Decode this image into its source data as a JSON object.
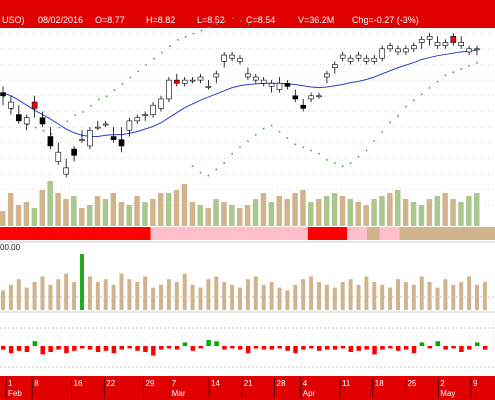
{
  "header": {
    "symbol": "USO)",
    "date": "08/02/2016",
    "open": "O=8.77",
    "high": "H=8.82",
    "low": "L=8.52",
    "close": "C=8.54",
    "volume": "V=36.2M",
    "change": "Chg=-0.27 (-3%)"
  },
  "colors": {
    "header_bg": "#e00000",
    "up_fill": "#ffffff",
    "down_fill": "#000000",
    "hollow_red_fill": "#ff0000",
    "ma_line": "#2a3fc8",
    "green_dots": "#3caa3c",
    "volume_green": "#a9c78f",
    "volume_tan": "#d2b48c",
    "band_red": "#ff0000",
    "band_pink": "#ffc0cb",
    "band_tan": "#d2b48c",
    "osc_red": "#ff0000",
    "osc_green": "#00aa00",
    "indicator_highlight": "#22aa22"
  },
  "middle_panel": {
    "label": "00.00"
  },
  "x_axis": {
    "ticks": [
      {
        "label": "1",
        "sub": "Feb"
      },
      {
        "label": "8",
        "sub": ""
      },
      {
        "label": "16",
        "sub": ""
      },
      {
        "label": "22",
        "sub": ""
      },
      {
        "label": "29",
        "sub": ""
      },
      {
        "label": "7",
        "sub": "Mar"
      },
      {
        "label": "14",
        "sub": ""
      },
      {
        "label": "21",
        "sub": ""
      },
      {
        "label": "28",
        "sub": ""
      },
      {
        "label": "4",
        "sub": "Apr"
      },
      {
        "label": "11",
        "sub": ""
      },
      {
        "label": "18",
        "sub": ""
      },
      {
        "label": "25",
        "sub": ""
      },
      {
        "label": "2",
        "sub": "May"
      },
      {
        "label": "9",
        "sub": ""
      }
    ]
  },
  "chart_data": {
    "type": "candlestick",
    "ylim": [
      7.3,
      10.3
    ],
    "candles": [
      {
        "o": 9.3,
        "h": 9.4,
        "l": 9.1,
        "c": 9.25,
        "col": "down"
      },
      {
        "o": 9.15,
        "h": 9.25,
        "l": 8.95,
        "c": 9.05,
        "col": "up"
      },
      {
        "o": 8.95,
        "h": 9.1,
        "l": 8.8,
        "c": 8.85,
        "col": "down"
      },
      {
        "o": 8.8,
        "h": 8.95,
        "l": 8.7,
        "c": 8.9,
        "col": "up"
      },
      {
        "o": 9.05,
        "h": 9.25,
        "l": 8.9,
        "c": 9.15,
        "col": "red"
      },
      {
        "o": 8.9,
        "h": 9.0,
        "l": 8.75,
        "c": 8.8,
        "col": "down"
      },
      {
        "o": 8.6,
        "h": 8.75,
        "l": 8.4,
        "c": 8.45,
        "col": "down"
      },
      {
        "o": 8.35,
        "h": 8.5,
        "l": 8.15,
        "c": 8.2,
        "col": "up"
      },
      {
        "o": 8.1,
        "h": 8.25,
        "l": 7.95,
        "c": 8.0,
        "col": "up"
      },
      {
        "o": 8.3,
        "h": 8.45,
        "l": 8.2,
        "c": 8.4,
        "col": "down"
      },
      {
        "o": 8.55,
        "h": 8.7,
        "l": 8.5,
        "c": 8.55,
        "col": "up"
      },
      {
        "o": 8.45,
        "h": 8.75,
        "l": 8.4,
        "c": 8.7,
        "col": "up"
      },
      {
        "o": 8.75,
        "h": 8.85,
        "l": 8.7,
        "c": 8.75,
        "col": "up"
      },
      {
        "o": 8.8,
        "h": 8.85,
        "l": 8.75,
        "c": 8.8,
        "col": "up"
      },
      {
        "o": 8.6,
        "h": 8.75,
        "l": 8.5,
        "c": 8.55,
        "col": "down"
      },
      {
        "o": 8.55,
        "h": 8.75,
        "l": 8.35,
        "c": 8.45,
        "col": "down"
      },
      {
        "o": 8.7,
        "h": 8.9,
        "l": 8.6,
        "c": 8.85,
        "col": "up"
      },
      {
        "o": 8.85,
        "h": 8.95,
        "l": 8.8,
        "c": 8.9,
        "col": "up"
      },
      {
        "o": 8.95,
        "h": 9.0,
        "l": 8.85,
        "c": 8.95,
        "col": "up"
      },
      {
        "o": 8.95,
        "h": 9.15,
        "l": 8.9,
        "c": 9.1,
        "col": "up"
      },
      {
        "o": 9.05,
        "h": 9.25,
        "l": 9.0,
        "c": 9.2,
        "col": "up"
      },
      {
        "o": 9.2,
        "h": 9.55,
        "l": 9.15,
        "c": 9.5,
        "col": "up"
      },
      {
        "o": 9.5,
        "h": 9.6,
        "l": 9.4,
        "c": 9.45,
        "col": "red"
      },
      {
        "o": 9.45,
        "h": 9.55,
        "l": 9.4,
        "c": 9.5,
        "col": "up"
      },
      {
        "o": 9.5,
        "h": 9.55,
        "l": 9.45,
        "c": 9.5,
        "col": "up"
      },
      {
        "o": 9.5,
        "h": 9.6,
        "l": 9.45,
        "c": 9.55,
        "col": "up"
      },
      {
        "o": 9.4,
        "h": 9.5,
        "l": 9.35,
        "c": 9.4,
        "col": "up"
      },
      {
        "o": 9.55,
        "h": 9.65,
        "l": 9.45,
        "c": 9.6,
        "col": "up"
      },
      {
        "o": 9.8,
        "h": 9.95,
        "l": 9.7,
        "c": 9.9,
        "col": "up"
      },
      {
        "o": 9.85,
        "h": 9.95,
        "l": 9.8,
        "c": 9.9,
        "col": "up"
      },
      {
        "o": 9.85,
        "h": 9.9,
        "l": 9.75,
        "c": 9.8,
        "col": "up"
      },
      {
        "o": 9.6,
        "h": 9.7,
        "l": 9.5,
        "c": 9.55,
        "col": "up"
      },
      {
        "o": 9.55,
        "h": 9.6,
        "l": 9.45,
        "c": 9.5,
        "col": "up"
      },
      {
        "o": 9.45,
        "h": 9.55,
        "l": 9.4,
        "c": 9.5,
        "col": "up"
      },
      {
        "o": 9.4,
        "h": 9.5,
        "l": 9.3,
        "c": 9.45,
        "col": "up"
      },
      {
        "o": 9.45,
        "h": 9.55,
        "l": 9.3,
        "c": 9.35,
        "col": "up"
      },
      {
        "o": 9.45,
        "h": 9.5,
        "l": 9.35,
        "c": 9.4,
        "col": "down"
      },
      {
        "o": 9.25,
        "h": 9.35,
        "l": 9.15,
        "c": 9.2,
        "col": "down"
      },
      {
        "o": 9.1,
        "h": 9.2,
        "l": 9.0,
        "c": 9.05,
        "col": "down"
      },
      {
        "o": 9.2,
        "h": 9.3,
        "l": 9.15,
        "c": 9.25,
        "col": "up"
      },
      {
        "o": 9.25,
        "h": 9.3,
        "l": 9.2,
        "c": 9.25,
        "col": "up"
      },
      {
        "o": 9.55,
        "h": 9.65,
        "l": 9.45,
        "c": 9.6,
        "col": "up"
      },
      {
        "o": 9.7,
        "h": 9.8,
        "l": 9.6,
        "c": 9.75,
        "col": "up"
      },
      {
        "o": 9.9,
        "h": 9.95,
        "l": 9.8,
        "c": 9.85,
        "col": "up"
      },
      {
        "o": 9.8,
        "h": 9.9,
        "l": 9.75,
        "c": 9.85,
        "col": "up"
      },
      {
        "o": 9.85,
        "h": 9.95,
        "l": 9.8,
        "c": 9.9,
        "col": "up"
      },
      {
        "o": 9.85,
        "h": 9.9,
        "l": 9.75,
        "c": 9.8,
        "col": "up"
      },
      {
        "o": 9.8,
        "h": 9.9,
        "l": 9.75,
        "c": 9.85,
        "col": "up"
      },
      {
        "o": 9.85,
        "h": 10.05,
        "l": 9.8,
        "c": 10.0,
        "col": "up"
      },
      {
        "o": 10.05,
        "h": 10.1,
        "l": 9.95,
        "c": 10.0,
        "col": "up"
      },
      {
        "o": 10.0,
        "h": 10.05,
        "l": 9.9,
        "c": 9.95,
        "col": "up"
      },
      {
        "o": 9.95,
        "h": 10.05,
        "l": 9.9,
        "c": 10.0,
        "col": "up"
      },
      {
        "o": 10.0,
        "h": 10.1,
        "l": 9.95,
        "c": 10.05,
        "col": "up"
      },
      {
        "o": 10.1,
        "h": 10.2,
        "l": 10.0,
        "c": 10.15,
        "col": "up"
      },
      {
        "o": 10.15,
        "h": 10.25,
        "l": 10.05,
        "c": 10.2,
        "col": "up"
      },
      {
        "o": 10.1,
        "h": 10.2,
        "l": 10.0,
        "c": 10.05,
        "col": "up"
      },
      {
        "o": 10.05,
        "h": 10.15,
        "l": 10.0,
        "c": 10.1,
        "col": "up"
      },
      {
        "o": 10.2,
        "h": 10.25,
        "l": 10.05,
        "c": 10.1,
        "col": "red"
      },
      {
        "o": 10.1,
        "h": 10.2,
        "l": 10.0,
        "c": 10.05,
        "col": "up"
      },
      {
        "o": 10.0,
        "h": 10.05,
        "l": 9.9,
        "c": 9.95,
        "col": "up"
      },
      {
        "o": 10.0,
        "h": 10.05,
        "l": 9.9,
        "c": 10.0,
        "col": "up"
      }
    ],
    "ma": [
      9.3,
      9.25,
      9.18,
      9.1,
      9.02,
      8.95,
      8.88,
      8.8,
      8.72,
      8.66,
      8.62,
      8.6,
      8.6,
      8.62,
      8.63,
      8.63,
      8.65,
      8.68,
      8.72,
      8.76,
      8.82,
      8.9,
      8.98,
      9.06,
      9.12,
      9.18,
      9.23,
      9.28,
      9.33,
      9.38,
      9.41,
      9.43,
      9.44,
      9.45,
      9.45,
      9.45,
      9.44,
      9.43,
      9.41,
      9.39,
      9.38,
      9.39,
      9.41,
      9.43,
      9.46,
      9.48,
      9.51,
      9.55,
      9.6,
      9.65,
      9.7,
      9.74,
      9.78,
      9.83,
      9.86,
      9.89,
      9.91,
      9.93,
      9.95,
      9.96,
      9.98
    ],
    "dots_upper": [
      9.05,
      8.85,
      8.7,
      8.6,
      8.55,
      8.5,
      8.45,
      8.55,
      8.65,
      8.75,
      8.8,
      8.9,
      9.0,
      9.05,
      9.15,
      9.25,
      9.35,
      9.45,
      9.55,
      9.65,
      9.75,
      9.85,
      9.95,
      10.0,
      10.05,
      10.1,
      10.15,
      10.2,
      10.25,
      10.3,
      10.25,
      10.2
    ],
    "dots_lower": [
      8.35,
      8.25,
      8.2,
      8.3,
      8.4,
      8.55,
      8.65,
      8.75,
      8.85,
      8.95,
      9.0,
      8.9,
      8.8,
      8.7,
      8.65,
      8.6,
      8.55,
      8.45,
      8.4,
      8.35,
      8.4,
      8.5,
      8.6,
      8.75,
      8.9,
      9.05,
      9.15,
      9.3,
      9.4,
      9.5,
      9.6,
      9.7,
      9.8,
      9.85,
      9.9,
      9.95,
      10.0
    ],
    "volume": [
      0.25,
      0.55,
      0.35,
      0.4,
      0.3,
      0.6,
      0.75,
      0.55,
      0.45,
      0.5,
      0.3,
      0.35,
      0.5,
      0.45,
      0.55,
      0.4,
      0.35,
      0.5,
      0.4,
      0.45,
      0.55,
      0.55,
      0.6,
      0.7,
      0.4,
      0.35,
      0.3,
      0.45,
      0.4,
      0.35,
      0.3,
      0.35,
      0.45,
      0.55,
      0.4,
      0.5,
      0.45,
      0.55,
      0.6,
      0.4,
      0.45,
      0.5,
      0.55,
      0.5,
      0.45,
      0.4,
      0.35,
      0.45,
      0.5,
      0.55,
      0.6,
      0.45,
      0.4,
      0.35,
      0.45,
      0.5,
      0.55,
      0.45,
      0.4,
      0.5,
      0.55
    ],
    "volume_color": [
      "tan",
      "tan",
      "tan",
      "tan",
      "green",
      "tan",
      "green",
      "tan",
      "tan",
      "green",
      "tan",
      "green",
      "tan",
      "green",
      "tan",
      "tan",
      "green",
      "tan",
      "green",
      "tan",
      "tan",
      "green",
      "tan",
      "tan",
      "tan",
      "green",
      "tan",
      "green",
      "tan",
      "green",
      "tan",
      "tan",
      "green",
      "tan",
      "green",
      "tan",
      "tan",
      "tan",
      "tan",
      "green",
      "tan",
      "green",
      "green",
      "tan",
      "green",
      "tan",
      "tan",
      "green",
      "green",
      "tan",
      "green",
      "tan",
      "green",
      "green",
      "tan",
      "green",
      "tan",
      "tan",
      "green",
      "green",
      "green"
    ],
    "color_band": [
      {
        "from": 0,
        "to": 23,
        "color": "red"
      },
      {
        "from": 23,
        "to": 47,
        "color": "pink"
      },
      {
        "from": 47,
        "to": 53,
        "color": "red"
      },
      {
        "from": 53,
        "to": 56,
        "color": "pink"
      },
      {
        "from": 56,
        "to": 58,
        "color": "tan"
      },
      {
        "from": 58,
        "to": 61,
        "color": "pink"
      },
      {
        "from": 61,
        "to": 76,
        "color": "tan"
      }
    ],
    "indicator": [
      0.35,
      0.45,
      0.55,
      0.4,
      0.5,
      0.6,
      0.45,
      0.55,
      0.65,
      0.5,
      1.0,
      0.6,
      0.5,
      0.55,
      0.45,
      0.65,
      0.55,
      0.5,
      0.6,
      0.4,
      0.45,
      0.55,
      0.5,
      0.65,
      0.45,
      0.4,
      0.55,
      0.6,
      0.5,
      0.45,
      0.4,
      0.55,
      0.6,
      0.45,
      0.5,
      0.4,
      0.35,
      0.45,
      0.55,
      0.6,
      0.5,
      0.45,
      0.4,
      0.5,
      0.55,
      0.45,
      0.6,
      0.5,
      0.45,
      0.4,
      0.55,
      0.5,
      0.45,
      0.6,
      0.5,
      0.4,
      0.55,
      0.45,
      0.5,
      0.6,
      0.45,
      0.5
    ],
    "oscillator": [
      -0.3,
      -0.6,
      -0.4,
      -0.5,
      0.4,
      -0.7,
      -0.5,
      -0.3,
      -0.6,
      -0.4,
      -0.2,
      -0.3,
      -0.5,
      -0.4,
      -0.6,
      -0.3,
      -0.2,
      -0.4,
      -0.5,
      -0.8,
      -0.3,
      -0.2,
      -0.3,
      0.3,
      -0.4,
      -0.2,
      0.5,
      0.4,
      -0.3,
      -0.2,
      -0.3,
      -0.6,
      -0.2,
      -0.3,
      -0.3,
      -0.2,
      -0.4,
      -0.6,
      -0.3,
      -0.2,
      -0.4,
      -0.3,
      -0.3,
      -0.2,
      -0.5,
      -0.4,
      -0.3,
      -0.7,
      -0.3,
      -0.2,
      -0.4,
      -0.3,
      -0.6,
      0.3,
      -0.2,
      0.4,
      -0.3,
      -0.2,
      -0.5,
      -0.3,
      0.3,
      -0.3
    ]
  }
}
